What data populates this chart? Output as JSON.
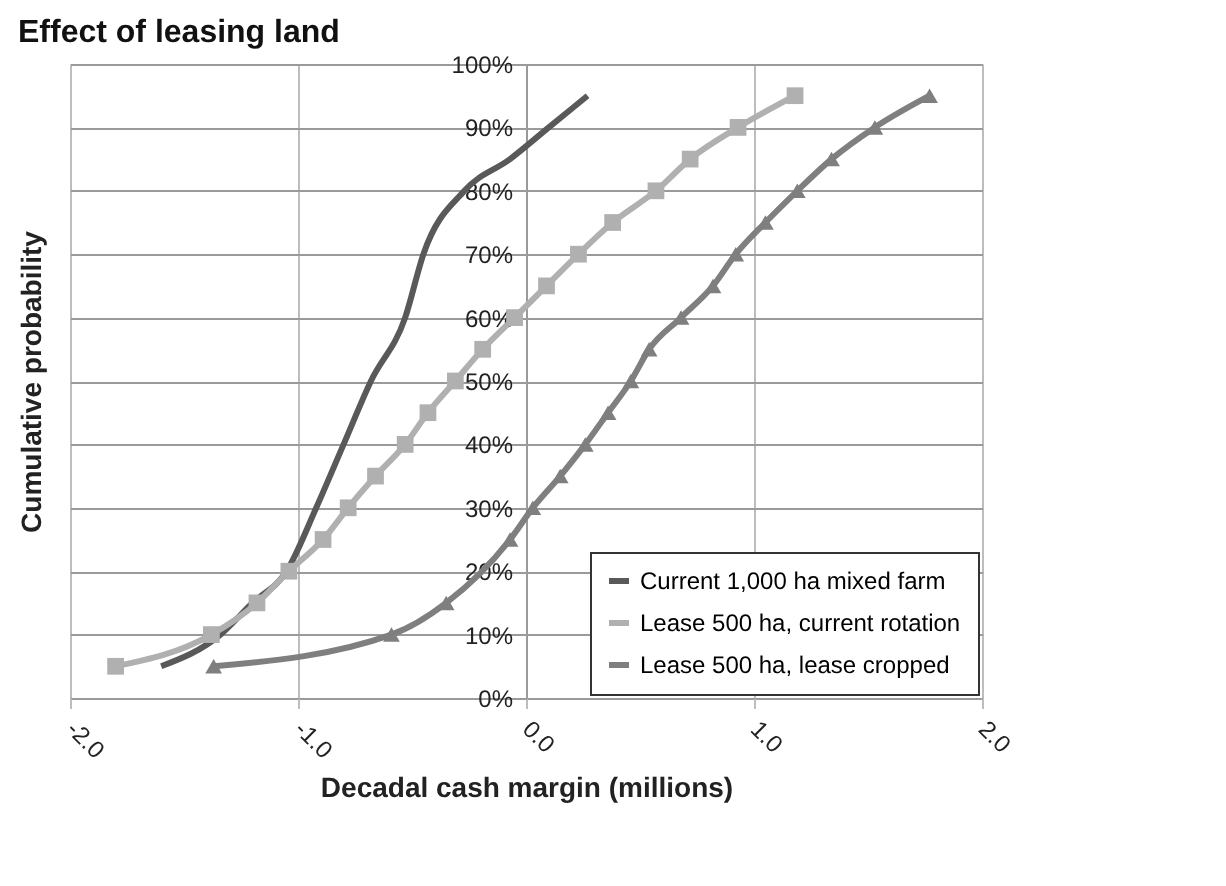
{
  "chart_data": {
    "type": "line",
    "title": "Effect of leasing land",
    "xlabel": "Decadal cash margin (millions)",
    "ylabel": "Cumulative probability",
    "xlim": [
      -2,
      2
    ],
    "xticks": [
      {
        "value": -2,
        "label": "-2.0"
      },
      {
        "value": -1,
        "label": "-1.0"
      },
      {
        "value": 0,
        "label": "0.0"
      },
      {
        "value": 1,
        "label": "1.0"
      },
      {
        "value": 2,
        "label": "2.0"
      }
    ],
    "ylim": [
      0,
      100
    ],
    "yticks": [
      {
        "value": 0,
        "label": "0%"
      },
      {
        "value": 10,
        "label": "10%"
      },
      {
        "value": 20,
        "label": "20%"
      },
      {
        "value": 30,
        "label": "30%"
      },
      {
        "value": 40,
        "label": "40%"
      },
      {
        "value": 50,
        "label": "50%"
      },
      {
        "value": 60,
        "label": "60%"
      },
      {
        "value": 70,
        "label": "70%"
      },
      {
        "value": 80,
        "label": "80%"
      },
      {
        "value": 90,
        "label": "90%"
      },
      {
        "value": 100,
        "label": "100%"
      }
    ],
    "grid": true,
    "legend": "bottom right",
    "series": [
      {
        "name": "Current 1,000 ha mixed farm",
        "color": "#595959",
        "marker": "none",
        "x": [
          -1.6,
          -1.34,
          -1.2,
          -1.05,
          -0.92,
          -0.8,
          -0.68,
          -0.53,
          -0.45,
          -0.27,
          -0.07,
          0.1,
          0.27
        ],
        "values": [
          5,
          10,
          15,
          20,
          30,
          40,
          50,
          60,
          70,
          80,
          85,
          90,
          95
        ]
      },
      {
        "name": "Lease 500 ha, current rotation",
        "color": "#b0b0b0",
        "marker": "square",
        "x": [
          -1.8,
          -1.38,
          -1.18,
          -1.04,
          -0.89,
          -0.78,
          -0.66,
          -0.53,
          -0.43,
          -0.31,
          -0.19,
          -0.05,
          0.09,
          0.23,
          0.38,
          0.57,
          0.72,
          0.93,
          1.18
        ],
        "values": [
          5,
          10,
          15,
          20,
          25,
          30,
          35,
          40,
          45,
          50,
          55,
          60,
          65,
          70,
          75,
          80,
          85,
          90,
          95
        ]
      },
      {
        "name": "Lease 500 ha, lease cropped",
        "color": "#7f7f7f",
        "marker": "triangle",
        "x": [
          -1.37,
          -0.59,
          -0.35,
          -0.07,
          0.03,
          0.15,
          0.26,
          0.36,
          0.46,
          0.54,
          0.68,
          0.82,
          0.92,
          1.05,
          1.19,
          1.34,
          1.53,
          1.77
        ],
        "values": [
          5,
          10,
          15,
          25,
          30,
          35,
          40,
          45,
          50,
          55,
          60,
          65,
          70,
          75,
          80,
          85,
          90,
          95
        ]
      }
    ]
  }
}
